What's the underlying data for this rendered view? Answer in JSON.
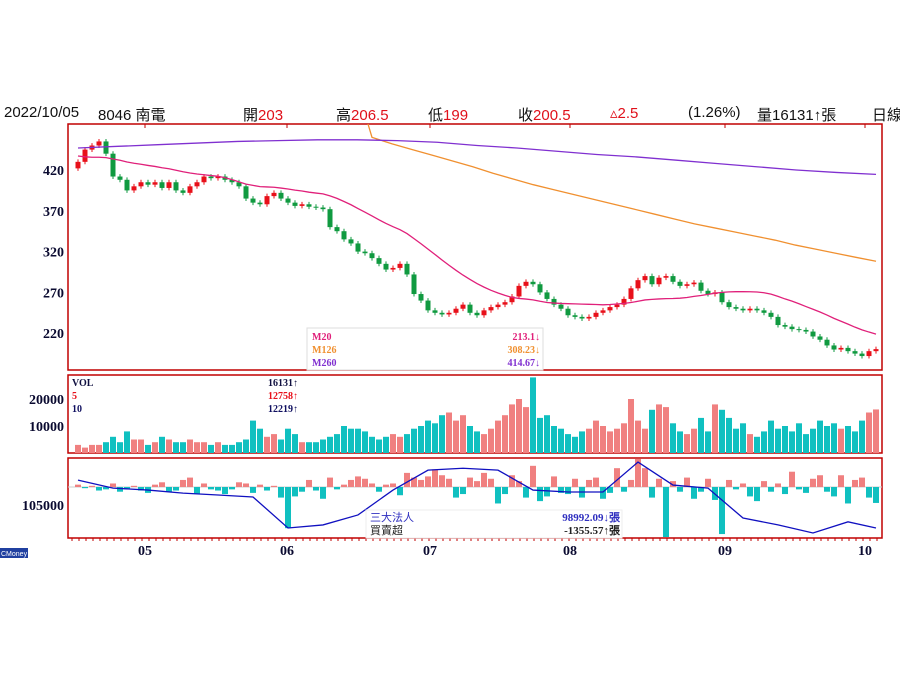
{
  "header": {
    "date": "2022/10/05",
    "stock": "8046 南電",
    "open_label": "開",
    "open": "203",
    "high_label": "高",
    "high": "206.5",
    "low_label": "低",
    "low": "199",
    "close_label": "收",
    "close": "200.5",
    "change": "▵2.5",
    "change_pct": "(1.26%)",
    "volume_label": "量",
    "volume": "16131↑張",
    "period": "日線"
  },
  "brand": "CMoney",
  "colors": {
    "up": "#e8101a",
    "down": "#109a40",
    "vol_up": "#f08080",
    "vol_down": "#10c0c0",
    "m20": "#e0207a",
    "m126": "#f09030",
    "m260": "#8030d0",
    "inst_line": "#1010c0",
    "frame": "#c00000"
  },
  "chart_data": [
    {
      "type": "candlestick",
      "y_ticks": [
        "420",
        "370",
        "320",
        "270",
        "220"
      ],
      "y_tick_values": [
        420,
        370,
        320,
        270,
        220
      ],
      "x_ticks": [
        "05",
        "06",
        "07",
        "08",
        "09",
        "10"
      ],
      "close": [
        430,
        445,
        450,
        455,
        440,
        412,
        408,
        395,
        400,
        405,
        402,
        405,
        398,
        405,
        395,
        392,
        400,
        405,
        412,
        410,
        412,
        408,
        405,
        400,
        385,
        380,
        378,
        388,
        392,
        385,
        380,
        376,
        378,
        375,
        374,
        372,
        350,
        345,
        335,
        330,
        320,
        318,
        312,
        305,
        298,
        300,
        305,
        292,
        268,
        260,
        248,
        245,
        243,
        245,
        250,
        255,
        245,
        242,
        248,
        252,
        255,
        258,
        265,
        278,
        283,
        280,
        270,
        262,
        255,
        250,
        242,
        240,
        238,
        240,
        245,
        248,
        252,
        255,
        262,
        275,
        285,
        290,
        280,
        288,
        290,
        283,
        278,
        280,
        282,
        272,
        268,
        270,
        258,
        252,
        250,
        248,
        250,
        248,
        245,
        240,
        230,
        228,
        225,
        224,
        222,
        216,
        212,
        205,
        200,
        202,
        198,
        195,
        192,
        198,
        200.5
      ],
      "m126": [
        null,
        null,
        null,
        null,
        null,
        null,
        null,
        null,
        null,
        null,
        null,
        null,
        null,
        null,
        null,
        null,
        null,
        null,
        null,
        null,
        null,
        null,
        null,
        null,
        null,
        null,
        null,
        null,
        null,
        null,
        null,
        null,
        null,
        null,
        null,
        null,
        null,
        null,
        null,
        null,
        null,
        null,
        460,
        452,
        445,
        438,
        431,
        424,
        416,
        409,
        402,
        396,
        390,
        384,
        378,
        372,
        366,
        360,
        354,
        349,
        344,
        339,
        334,
        328,
        323,
        318,
        313,
        308.23
      ],
      "m126_step": 1,
      "m260": [
        447,
        449,
        451,
        453,
        455,
        456,
        457,
        457,
        456,
        454,
        450,
        447,
        443,
        439,
        436,
        432,
        428,
        424,
        420,
        417,
        414.67
      ],
      "legend": [
        {
          "name": "M20",
          "value": "213.1↓"
        },
        {
          "name": "M126",
          "value": "308.23↓"
        },
        {
          "name": "M260",
          "value": "414.67↓"
        }
      ]
    },
    {
      "type": "bar",
      "title": "VOL",
      "y_ticks": [
        "20000",
        "10000"
      ],
      "y_tick_values": [
        20000,
        10000
      ],
      "values": [
        3000,
        2000,
        3000,
        3000,
        4000,
        6000,
        4000,
        8000,
        5000,
        5000,
        3000,
        4000,
        6000,
        5000,
        4000,
        4000,
        5000,
        4000,
        4000,
        3000,
        4000,
        3000,
        3000,
        4000,
        5000,
        12000,
        9000,
        6000,
        7000,
        5000,
        9000,
        7000,
        4000,
        4000,
        4000,
        5000,
        6000,
        7000,
        10000,
        9000,
        9000,
        8000,
        6000,
        5000,
        6000,
        7000,
        6000,
        7000,
        9000,
        10000,
        12000,
        11000,
        14000,
        15000,
        12000,
        14000,
        10000,
        8000,
        7000,
        9000,
        12000,
        14000,
        18000,
        20000,
        17000,
        28000,
        13000,
        14000,
        10000,
        9000,
        7000,
        6000,
        8000,
        9000,
        12000,
        10000,
        8000,
        9000,
        11000,
        20000,
        12000,
        9000,
        16000,
        18000,
        17000,
        11000,
        8000,
        7000,
        9000,
        13000,
        8000,
        18000,
        16000,
        13000,
        9000,
        11000,
        7000,
        6000,
        8000,
        12000,
        9000,
        10000,
        8000,
        11000,
        7000,
        9000,
        12000,
        10000,
        11000,
        9000,
        10000,
        8000,
        12000,
        15000,
        16131
      ],
      "legend": [
        {
          "name": "VOL",
          "value": "16131↑"
        },
        {
          "name": "5",
          "value": "12758↑"
        },
        {
          "name": "10",
          "value": "12219↑"
        }
      ]
    },
    {
      "type": "bar+line",
      "y_ticks": [
        "105000"
      ],
      "y_tick_values": [
        105000
      ],
      "net": [
        200,
        -100,
        100,
        -300,
        -200,
        300,
        -400,
        -200,
        100,
        -300,
        -500,
        200,
        400,
        -400,
        -300,
        600,
        800,
        -600,
        300,
        -200,
        -300,
        -600,
        -200,
        400,
        300,
        -500,
        200,
        -300,
        100,
        -900,
        -3500,
        -800,
        -400,
        600,
        -300,
        -1000,
        800,
        -200,
        200,
        600,
        900,
        700,
        300,
        -400,
        200,
        300,
        -700,
        1200,
        800,
        600,
        900,
        1500,
        1000,
        700,
        -900,
        -600,
        800,
        500,
        1200,
        700,
        -1400,
        -600,
        1000,
        500,
        -900,
        1800,
        -1200,
        -800,
        900,
        -500,
        -600,
        700,
        -900,
        600,
        800,
        -1000,
        -500,
        1600,
        -400,
        600,
        2500,
        1600,
        -900,
        700,
        -5800,
        500,
        -400,
        800,
        -1000,
        -400,
        700,
        -1100,
        -4000,
        600,
        -200,
        300,
        -800,
        -1200,
        500,
        -400,
        300,
        -600,
        1300,
        -200,
        -500,
        700,
        1000,
        -400,
        -800,
        1000,
        -1400,
        600,
        800,
        -900,
        -1355.57
      ],
      "cumulative_every5": [
        111500,
        109400,
        108900,
        108100,
        107600,
        107100,
        99000,
        99800,
        102400,
        108900,
        114100,
        114600,
        114100,
        108900,
        108400,
        108400,
        116200,
        110200,
        109400,
        101600,
        99800,
        97700,
        100600,
        98992.09
      ],
      "legend": [
        {
          "name": "三大法人",
          "value": "98992.09↓張"
        },
        {
          "name": "買賣超",
          "value": "-1355.57↑張"
        }
      ]
    }
  ]
}
